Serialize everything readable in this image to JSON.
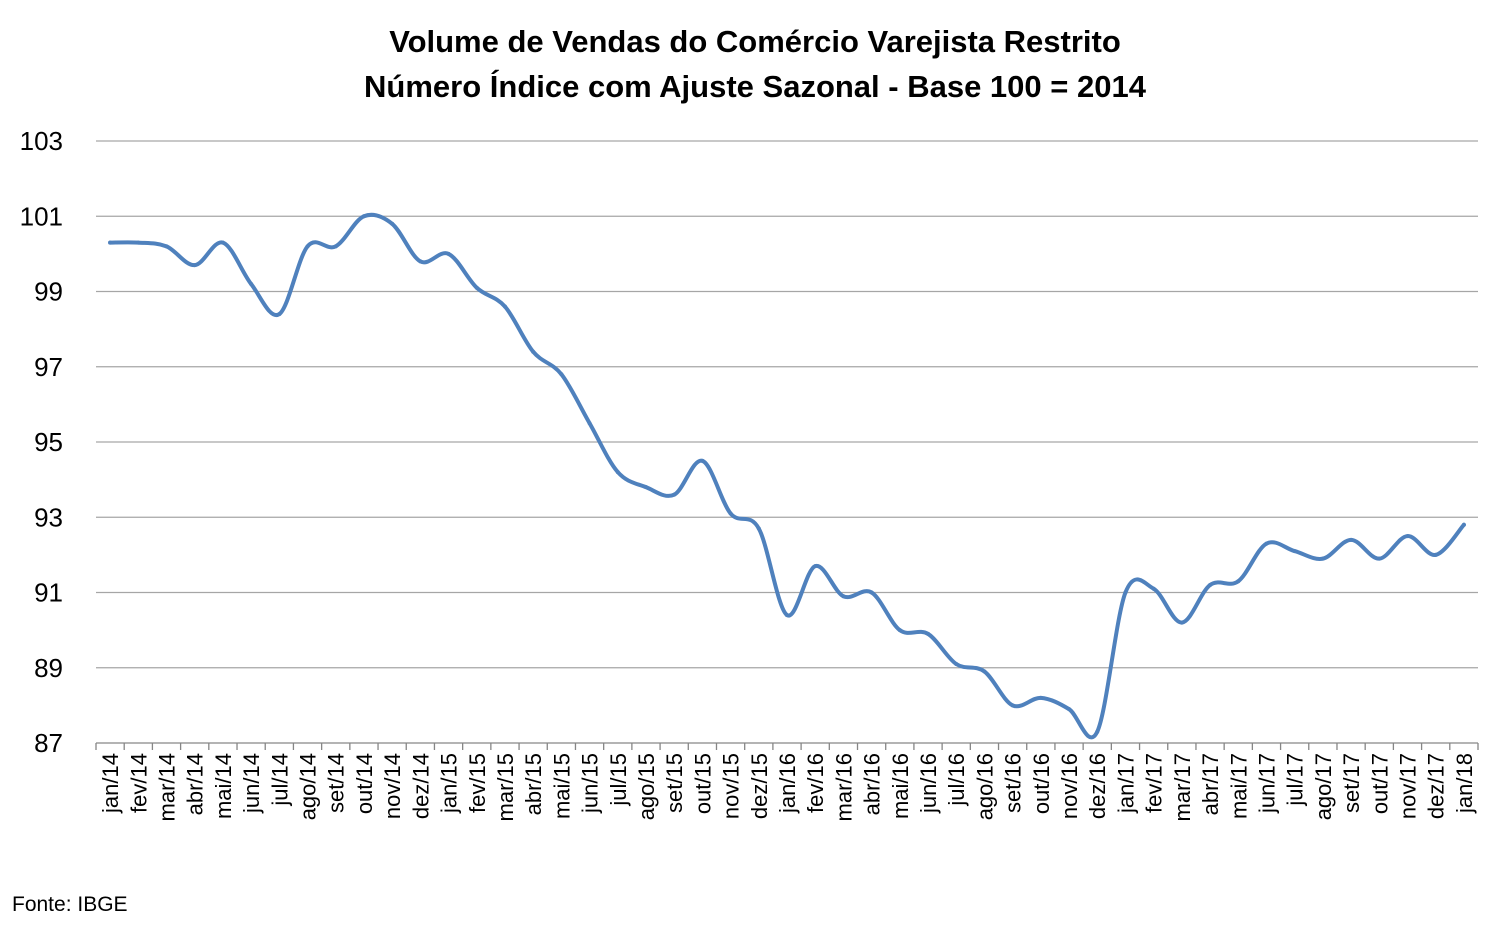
{
  "chart_data": {
    "type": "line",
    "title": "Volume de Vendas do Comércio Varejista Restrito",
    "subtitle": "Número Índice com Ajuste Sazonal - Base 100 = 2014",
    "xlabel": "",
    "ylabel": "",
    "ylim": [
      87,
      103
    ],
    "yticks": [
      87,
      89,
      91,
      93,
      95,
      97,
      99,
      101,
      103
    ],
    "grid": true,
    "legend": "none",
    "categories": [
      "jan/14",
      "fev/14",
      "mar/14",
      "abr/14",
      "mai/14",
      "jun/14",
      "jul/14",
      "ago/14",
      "set/14",
      "out/14",
      "nov/14",
      "dez/14",
      "jan/15",
      "fev/15",
      "mar/15",
      "abr/15",
      "mai/15",
      "jun/15",
      "jul/15",
      "ago/15",
      "set/15",
      "out/15",
      "nov/15",
      "dez/15",
      "jan/16",
      "fev/16",
      "mar/16",
      "abr/16",
      "mai/16",
      "jun/16",
      "jul/16",
      "ago/16",
      "set/16",
      "out/16",
      "nov/16",
      "dez/16",
      "jan/17",
      "fev/17",
      "mar/17",
      "abr/17",
      "mai/17",
      "jun/17",
      "jul/17",
      "ago/17",
      "set/17",
      "out/17",
      "nov/17",
      "dez/17",
      "jan/18"
    ],
    "series": [
      {
        "values": [
          100.3,
          100.3,
          100.2,
          99.7,
          100.3,
          99.2,
          98.4,
          100.2,
          100.2,
          101.0,
          100.8,
          99.8,
          100.0,
          99.1,
          98.6,
          97.4,
          96.8,
          95.5,
          94.2,
          93.8,
          93.6,
          94.5,
          93.1,
          92.7,
          90.4,
          91.7,
          90.9,
          91.0,
          90.0,
          89.9,
          89.1,
          88.9,
          88.0,
          88.2,
          87.9,
          87.3,
          91.0,
          91.1,
          90.2,
          91.2,
          91.3,
          92.3,
          92.1,
          91.9,
          92.4,
          91.9,
          92.5,
          92.0,
          92.8
        ],
        "color": "#4F81BD"
      }
    ],
    "source": "Fonte: IBGE"
  },
  "colors": {
    "line": "#4F81BD",
    "grid": "#A6A6A6",
    "axis": "#868686"
  }
}
